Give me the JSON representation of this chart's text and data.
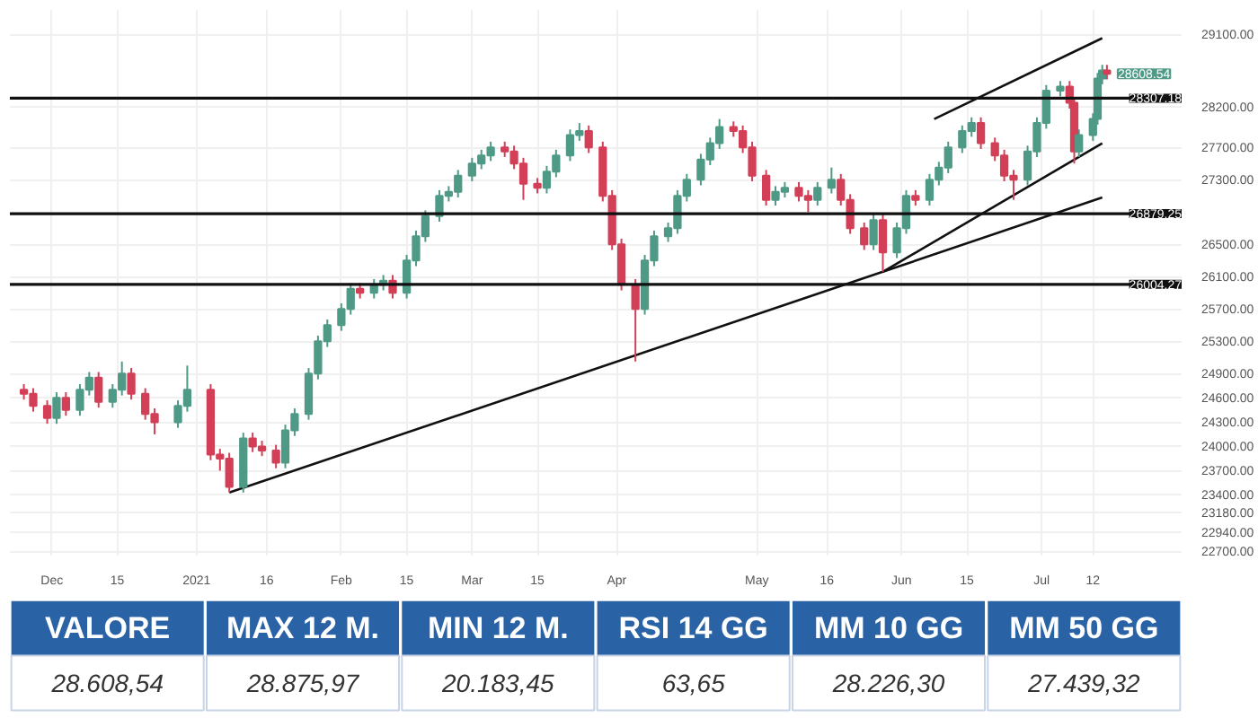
{
  "chart_data": [
    {
      "type": "candlestick",
      "colors": [
        "#d23f57",
        "#d23f57",
        "#d23f57",
        "#4f9a86",
        "#d23f57",
        "#4f9a86",
        "#4f9a86",
        "#d23f57",
        "#4f9a86",
        "#4f9a86",
        "#d23f57",
        "#d23f57",
        "#d23f57",
        "#4f9a86",
        "#4f9a86",
        "#d23f57",
        "#d23f57",
        "#d23f57",
        "#4f9a86",
        "#d23f57",
        "#d23f57",
        "#d23f57",
        "#4f9a86",
        "#4f9a86",
        "#4f9a86",
        "#4f9a86",
        "#4f9a86",
        "#4f9a86",
        "#4f9a86",
        "#d23f57",
        "#4f9a86",
        "#4f9a86",
        "#d23f57",
        "#4f9a86",
        "#4f9a86",
        "#4f9a86",
        "#4f9a86",
        "#4f9a86",
        "#4f9a86",
        "#4f9a86",
        "#4f9a86",
        "#4f9a86",
        "#d23f57",
        "#d23f57",
        "#d23f57",
        "#d23f57",
        "#4f9a86",
        "#4f9a86",
        "#4f9a86",
        "#4f9a86",
        "#d23f57",
        "#d23f57",
        "#d23f57",
        "#d23f57",
        "#d23f57",
        "#4f9a86",
        "#4f9a86",
        "#4f9a86",
        "#4f9a86",
        "#4f9a86",
        "#4f9a86",
        "#4f9a86",
        "#4f9a86",
        "#d23f57",
        "#d23f57",
        "#d23f57",
        "#d23f57",
        "#4f9a86",
        "#4f9a86",
        "#d23f57",
        "#d23f57",
        "#4f9a86",
        "#4f9a86",
        "#d23f57",
        "#d23f57",
        "#d23f57",
        "#4f9a86",
        "#d23f57",
        "#4f9a86",
        "#4f9a86",
        "#d23f57",
        "#4f9a86",
        "#4f9a86",
        "#4f9a86",
        "#4f9a86",
        "#4f9a86",
        "#d23f57",
        "#d23f57",
        "#d23f57",
        "#d23f57",
        "#4f9a86",
        "#4f9a86",
        "#4f9a86",
        "#4f9a86",
        "#d23f57",
        "#d23f57",
        "#4f9a86",
        "#4f9a86",
        "#4f9a86",
        "#4f9a86",
        "#d23f57"
      ],
      "x": [
        "2020-11-25",
        "2020-11-27",
        "2020-11-30",
        "2020-12-02",
        "2020-12-04",
        "2020-12-07",
        "2020-12-09",
        "2020-12-11",
        "2020-12-14",
        "2020-12-16",
        "2020-12-18",
        "2020-12-21",
        "2020-12-23",
        "2020-12-28",
        "2020-12-30",
        "2021-01-04",
        "2021-01-06",
        "2021-01-08",
        "2021-01-11",
        "2021-01-13",
        "2021-01-15",
        "2021-01-18",
        "2021-01-20",
        "2021-01-22",
        "2021-01-25",
        "2021-01-27",
        "2021-01-29",
        "2021-02-01",
        "2021-02-03",
        "2021-02-05",
        "2021-02-08",
        "2021-02-10",
        "2021-02-12",
        "2021-02-15",
        "2021-02-17",
        "2021-02-19",
        "2021-02-22",
        "2021-02-24",
        "2021-02-26",
        "2021-03-01",
        "2021-03-03",
        "2021-03-05",
        "2021-03-08",
        "2021-03-10",
        "2021-03-12",
        "2021-03-15",
        "2021-03-17",
        "2021-03-19",
        "2021-03-22",
        "2021-03-24",
        "2021-03-26",
        "2021-03-29",
        "2021-03-31",
        "2021-04-02",
        "2021-04-05",
        "2021-04-07",
        "2021-04-09",
        "2021-04-12",
        "2021-04-14",
        "2021-04-16",
        "2021-04-19",
        "2021-04-21",
        "2021-04-23",
        "2021-04-26",
        "2021-04-28",
        "2021-04-30",
        "2021-05-03",
        "2021-05-05",
        "2021-05-07",
        "2021-05-10",
        "2021-05-12",
        "2021-05-14",
        "2021-05-17",
        "2021-05-19",
        "2021-05-21",
        "2021-05-24",
        "2021-05-26",
        "2021-05-28",
        "2021-05-31",
        "2021-06-02",
        "2021-06-04",
        "2021-06-07",
        "2021-06-09",
        "2021-06-11",
        "2021-06-14",
        "2021-06-16",
        "2021-06-18",
        "2021-06-21",
        "2021-06-23",
        "2021-06-25",
        "2021-06-28",
        "2021-06-30",
        "2021-07-02",
        "2021-07-05",
        "2021-07-07",
        "2021-07-08",
        "2021-07-09",
        "2021-07-12",
        "2021-07-13",
        "2021-07-14",
        "2021-07-15"
      ],
      "ohlc": [
        [
          24700,
          24770,
          24580,
          24650
        ],
        [
          24650,
          24720,
          24430,
          24500
        ],
        [
          24500,
          24570,
          24280,
          24350
        ],
        [
          24350,
          24670,
          24280,
          24600
        ],
        [
          24600,
          24670,
          24380,
          24450
        ],
        [
          24450,
          24770,
          24380,
          24700
        ],
        [
          24700,
          24920,
          24630,
          24850
        ],
        [
          24850,
          24920,
          24480,
          24550
        ],
        [
          24550,
          24770,
          24480,
          24700
        ],
        [
          24700,
          25050,
          24630,
          24900
        ],
        [
          24900,
          24970,
          24580,
          24650
        ],
        [
          24650,
          24720,
          24330,
          24400
        ],
        [
          24400,
          24470,
          24150,
          24300
        ],
        [
          24300,
          24570,
          24230,
          24500
        ],
        [
          24500,
          25000,
          24430,
          24700
        ],
        [
          24700,
          24770,
          23830,
          23900
        ],
        [
          23900,
          23970,
          23700,
          23850
        ],
        [
          23850,
          23920,
          23430,
          23500
        ],
        [
          23500,
          24170,
          23430,
          24100
        ],
        [
          24100,
          24170,
          23930,
          24000
        ],
        [
          24000,
          24070,
          23880,
          23950
        ],
        [
          23950,
          24020,
          23730,
          23800
        ],
        [
          23800,
          24270,
          23730,
          24200
        ],
        [
          24200,
          24470,
          24130,
          24400
        ],
        [
          24400,
          24970,
          24330,
          24900
        ],
        [
          24900,
          25370,
          24830,
          25300
        ],
        [
          25300,
          25570,
          25230,
          25500
        ],
        [
          25500,
          25770,
          25430,
          25700
        ],
        [
          25700,
          26020,
          25630,
          25950
        ],
        [
          25950,
          26020,
          25830,
          25900
        ],
        [
          25900,
          26070,
          25830,
          26000
        ],
        [
          26000,
          26120,
          25930,
          26050
        ],
        [
          26050,
          26120,
          25830,
          25900
        ],
        [
          25900,
          26370,
          25830,
          26300
        ],
        [
          26300,
          26670,
          26230,
          26600
        ],
        [
          26600,
          26920,
          26530,
          26850
        ],
        [
          26850,
          27170,
          26780,
          27100
        ],
        [
          27100,
          27220,
          27030,
          27150
        ],
        [
          27150,
          27420,
          27080,
          27350
        ],
        [
          27350,
          27570,
          27280,
          27500
        ],
        [
          27500,
          27670,
          27430,
          27600
        ],
        [
          27600,
          27770,
          27530,
          27700
        ],
        [
          27700,
          27770,
          27580,
          27650
        ],
        [
          27650,
          27720,
          27430,
          27500
        ],
        [
          27500,
          27570,
          27050,
          27250
        ],
        [
          27250,
          27320,
          27130,
          27200
        ],
        [
          27200,
          27470,
          27130,
          27400
        ],
        [
          27400,
          27670,
          27330,
          27600
        ],
        [
          27600,
          27920,
          27530,
          27850
        ],
        [
          27850,
          28000,
          27780,
          27900
        ],
        [
          27900,
          27970,
          27630,
          27700
        ],
        [
          27700,
          27770,
          27030,
          27100
        ],
        [
          27100,
          27170,
          26430,
          26500
        ],
        [
          26500,
          26570,
          25930,
          26000
        ],
        [
          26000,
          26070,
          25050,
          25700
        ],
        [
          25700,
          26370,
          25630,
          26300
        ],
        [
          26300,
          26670,
          26230,
          26600
        ],
        [
          26600,
          26770,
          26530,
          26700
        ],
        [
          26700,
          27170,
          26630,
          27100
        ],
        [
          27100,
          27370,
          27030,
          27300
        ],
        [
          27300,
          27620,
          27230,
          27550
        ],
        [
          27550,
          27820,
          27480,
          27750
        ],
        [
          27750,
          28050,
          27680,
          27950
        ],
        [
          27950,
          28020,
          27830,
          27900
        ],
        [
          27900,
          27970,
          27630,
          27700
        ],
        [
          27700,
          27770,
          27280,
          27350
        ],
        [
          27350,
          27420,
          26980,
          27050
        ],
        [
          27050,
          27220,
          26980,
          27150
        ],
        [
          27150,
          27270,
          27080,
          27200
        ],
        [
          27200,
          27270,
          27030,
          27100
        ],
        [
          27100,
          27170,
          26900,
          27050
        ],
        [
          27050,
          27270,
          26980,
          27200
        ],
        [
          27200,
          27450,
          27130,
          27300
        ],
        [
          27300,
          27370,
          26980,
          27050
        ],
        [
          27050,
          27120,
          26630,
          26700
        ],
        [
          26700,
          26770,
          26430,
          26500
        ],
        [
          26500,
          26870,
          26430,
          26800
        ],
        [
          26800,
          26870,
          26160,
          26400
        ],
        [
          26400,
          26770,
          26330,
          26700
        ],
        [
          26700,
          27170,
          26630,
          27100
        ],
        [
          27100,
          27170,
          26980,
          27050
        ],
        [
          27050,
          27370,
          26980,
          27300
        ],
        [
          27300,
          27520,
          27230,
          27450
        ],
        [
          27450,
          27770,
          27380,
          27700
        ],
        [
          27700,
          27970,
          27630,
          27900
        ],
        [
          27900,
          28070,
          27830,
          28000
        ],
        [
          28000,
          28070,
          27680,
          27750
        ],
        [
          27750,
          27820,
          27530,
          27600
        ],
        [
          27600,
          27670,
          27280,
          27350
        ],
        [
          27350,
          27420,
          27050,
          27300
        ],
        [
          27300,
          27720,
          27230,
          27650
        ],
        [
          27650,
          28070,
          27580,
          28000
        ],
        [
          28000,
          28470,
          27930,
          28400
        ],
        [
          28400,
          28520,
          28330,
          28450
        ],
        [
          28450,
          28520,
          28180,
          28250
        ],
        [
          28250,
          28320,
          27500,
          27650
        ],
        [
          27650,
          27920,
          27580,
          27850
        ],
        [
          27850,
          28120,
          27780,
          28050
        ],
        [
          28050,
          28620,
          27980,
          28550
        ],
        [
          28550,
          28720,
          28480,
          28650
        ],
        [
          28650,
          28720,
          28540,
          28608.54
        ]
      ],
      "series": [
        {
          "type": "line",
          "color": "#111111",
          "x": [
            "2021-01-08",
            "2021-05-28",
            "2021-07-14"
          ],
          "values": [
            23430,
            26160,
            27080
          ]
        },
        {
          "type": "line",
          "color": "#111111",
          "x": [
            "2021-05-28",
            "2021-07-14"
          ],
          "values": [
            26160,
            27750
          ]
        },
        {
          "type": "line",
          "color": "#111111",
          "x": [
            "2021-06-08",
            "2021-07-14"
          ],
          "values": [
            28050,
            29050
          ]
        }
      ],
      "ref_lines": [
        {
          "axis": "y",
          "value": 28307.18,
          "label": "28307.18",
          "color": "#111111"
        },
        {
          "axis": "y",
          "value": 26879.25,
          "label": "26879.25",
          "color": "#111111"
        },
        {
          "axis": "y",
          "value": 26004.27,
          "label": "26004.27",
          "color": "#111111"
        }
      ],
      "annotations": [
        {
          "text": "28608.54",
          "x": "2021-07-15",
          "y": 28608.54
        }
      ],
      "xlim": [
        "2020-11-22",
        "2021-07-31"
      ],
      "xticks": [
        {
          "value": "2020-12-01",
          "label": "Dec"
        },
        {
          "value": "2020-12-15",
          "label": "15"
        },
        {
          "value": "2021-01-01",
          "label": "2021"
        },
        {
          "value": "2021-01-16",
          "label": "16"
        },
        {
          "value": "2021-02-01",
          "label": "Feb"
        },
        {
          "value": "2021-02-15",
          "label": "15"
        },
        {
          "value": "2021-03-01",
          "label": "Mar"
        },
        {
          "value": "2021-03-15",
          "label": "15"
        },
        {
          "value": "2021-04-01",
          "label": "Apr"
        },
        {
          "value": "2021-05-01",
          "label": "May"
        },
        {
          "value": "2021-05-16",
          "label": "16"
        },
        {
          "value": "2021-06-01",
          "label": "Jun"
        },
        {
          "value": "2021-06-15",
          "label": "15"
        },
        {
          "value": "2021-07-01",
          "label": "Jul"
        },
        {
          "value": "2021-07-12",
          "label": "12"
        }
      ],
      "ylim": [
        22650,
        29400
      ],
      "yticks": [
        {
          "value": 29100,
          "label": "29100.00"
        },
        {
          "value": 28200,
          "label": "28200.00"
        },
        {
          "value": 27700,
          "label": "27700.00"
        },
        {
          "value": 27300,
          "label": "27300.00"
        },
        {
          "value": 26500,
          "label": "26500.00"
        },
        {
          "value": 26100,
          "label": "26100.00"
        },
        {
          "value": 25700,
          "label": "25700.00"
        },
        {
          "value": 25300,
          "label": "25300.00"
        },
        {
          "value": 24900,
          "label": "24900.00"
        },
        {
          "value": 24600,
          "label": "24600.00"
        },
        {
          "value": 24300,
          "label": "24300.00"
        },
        {
          "value": 24000,
          "label": "24000.00"
        },
        {
          "value": 23700,
          "label": "23700.00"
        },
        {
          "value": 23400,
          "label": "23400.00"
        },
        {
          "value": 23180,
          "label": "23180.00"
        },
        {
          "value": 22940,
          "label": "22940.00"
        },
        {
          "value": 22700,
          "label": "22700.00"
        }
      ],
      "grid": true
    },
    {
      "type": "other",
      "color": "#2a62a6",
      "categories": [
        "VALORE",
        "MAX 12 M.",
        "MIN 12 M.",
        "RSI 14 GG",
        "MM 10 GG",
        "MM 50 GG"
      ],
      "value_labels": [
        "28.608,54",
        "28.875,97",
        "20.183,45",
        "63,65",
        "28.226,30",
        "27.439,32"
      ]
    }
  ]
}
